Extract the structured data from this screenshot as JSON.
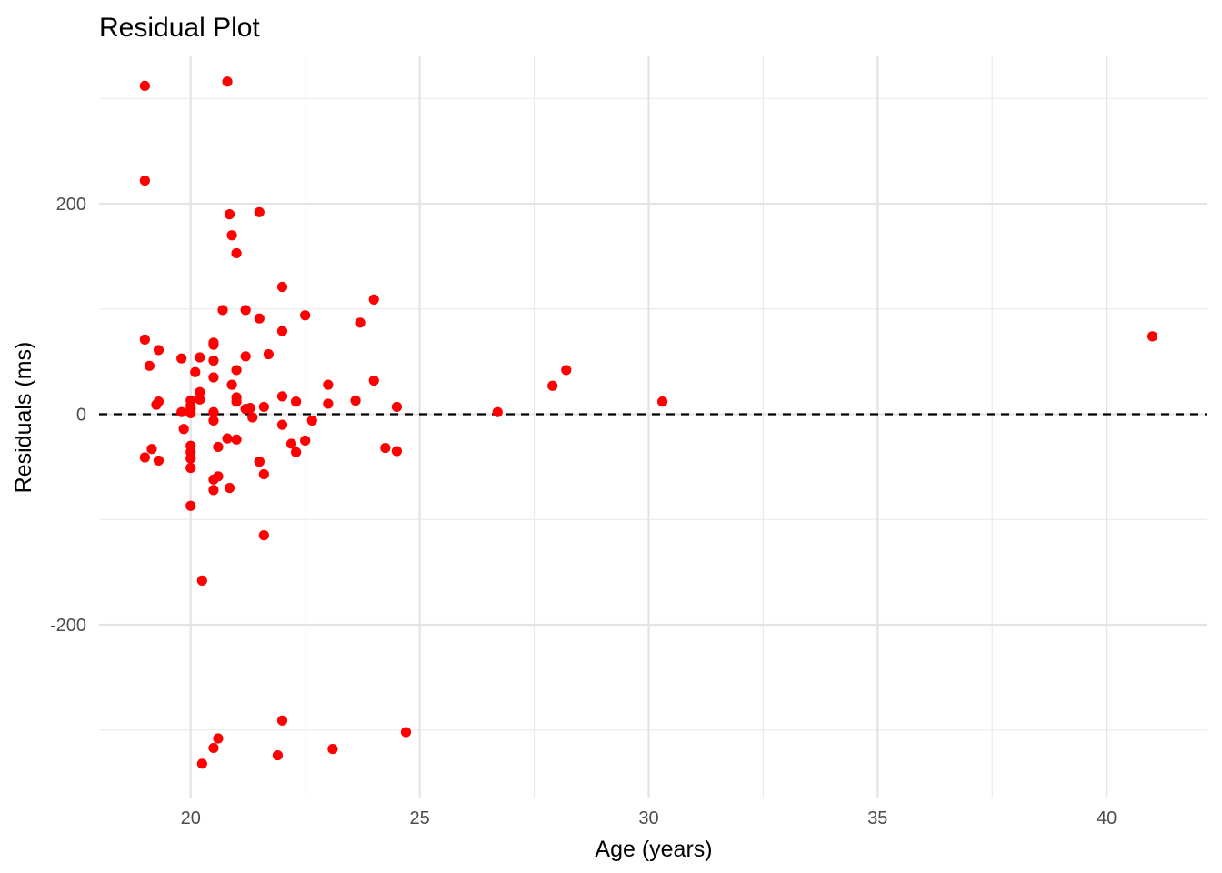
{
  "chart_data": {
    "type": "scatter",
    "title": "Residual Plot",
    "xlabel": "Age (years)",
    "ylabel": "Residuals (ms)",
    "xlim": [
      18,
      42.2
    ],
    "ylim": [
      -365,
      340
    ],
    "x_ticks": [
      20,
      25,
      30,
      35,
      40
    ],
    "x_tick_labels": [
      "20",
      "25",
      "30",
      "35",
      "40"
    ],
    "y_ticks": [
      -200,
      0,
      200
    ],
    "y_tick_labels": [
      "-200",
      "0",
      "200"
    ],
    "x_minor_gridlines": [
      22.5,
      27.5,
      32.5,
      37.5
    ],
    "y_minor_gridlines": [
      -300,
      -100,
      100,
      300
    ],
    "grid": true,
    "legend": "none",
    "point_color": "#ff0000",
    "reference_line": {
      "y": 0,
      "style": "dashed",
      "color": "#000000"
    },
    "x": [
      19.0,
      20.8,
      19.0,
      20.85,
      21.5,
      20.9,
      21.0,
      22.0,
      24.0,
      20.7,
      21.2,
      21.5,
      22.5,
      23.7,
      22.0,
      41.0,
      19.0,
      20.5,
      19.3,
      21.7,
      21.2,
      19.1,
      19.8,
      20.2,
      20.5,
      20.5,
      21.0,
      20.1,
      20.5,
      20.9,
      28.2,
      24.0,
      23.0,
      27.9,
      20.2,
      21.0,
      20.0,
      19.3,
      22.0,
      23.6,
      30.3,
      19.25,
      20.0,
      22.3,
      20.2,
      21.0,
      21.2,
      23.0,
      21.6,
      24.5,
      21.3,
      20.0,
      20.0,
      26.7,
      19.8,
      20.5,
      22.0,
      21.35,
      22.65,
      20.5,
      19.85,
      20.8,
      21.0,
      22.5,
      20.6,
      19.15,
      22.2,
      24.25,
      20.0,
      20.0,
      22.3,
      24.5,
      21.5,
      20.0,
      19.0,
      20.0,
      19.3,
      21.5,
      21.6,
      20.6,
      20.5,
      20.85,
      20.5,
      20.0,
      21.6,
      20.25,
      22.0,
      24.7,
      20.6,
      20.5,
      23.1,
      21.9,
      20.25
    ],
    "y": [
      312,
      316,
      222,
      190,
      192,
      170,
      153,
      121,
      109,
      99,
      99,
      91,
      94,
      87,
      79,
      74,
      71,
      68,
      61,
      57,
      55,
      46,
      53,
      54,
      66,
      51,
      42,
      40,
      35,
      28,
      42,
      32,
      28,
      27,
      21,
      16,
      13,
      12,
      17,
      13,
      12,
      9,
      8,
      12,
      14,
      12,
      5,
      10,
      7,
      7,
      6,
      5,
      1,
      2,
      2,
      2,
      -10,
      -3,
      -6,
      -6,
      -14,
      -23,
      -24,
      -25,
      -31,
      -33,
      -28,
      -32,
      -30,
      -36,
      -36,
      -35,
      -45,
      -42,
      -41,
      -51,
      -44,
      -45,
      -57,
      -59,
      -62,
      -70,
      -72,
      -87,
      -115,
      -158,
      -291,
      -302,
      -308,
      -317,
      -318,
      -324,
      -332
    ]
  }
}
